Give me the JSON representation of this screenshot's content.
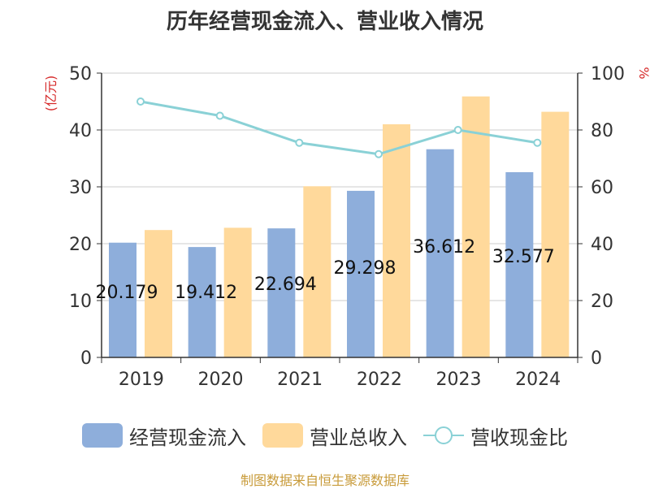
{
  "chart_data": {
    "type": "bar",
    "title": "历年经营现金流入、营业收入情况",
    "categories": [
      "2019",
      "2020",
      "2021",
      "2022",
      "2023",
      "2024"
    ],
    "series": [
      {
        "name": "经营现金流入",
        "type": "bar",
        "axis": "left",
        "color": "#8EAEDB",
        "values": [
          20.179,
          19.412,
          22.694,
          29.298,
          36.612,
          32.577
        ],
        "labels": [
          "20.179",
          "19.412",
          "22.694",
          "29.298",
          "36.612",
          "32.577"
        ]
      },
      {
        "name": "营业总收入",
        "type": "bar",
        "axis": "left",
        "color": "#FFD99B",
        "values": [
          22.4,
          22.8,
          30.1,
          41.0,
          45.9,
          43.2
        ]
      },
      {
        "name": "营收现金比",
        "type": "line",
        "axis": "right",
        "color": "#8AD1D6",
        "values": [
          90,
          85,
          75.5,
          71.5,
          80,
          75.5
        ]
      }
    ],
    "y_left": {
      "label": "(亿元)",
      "min": 0,
      "max": 50,
      "ticks": [
        "0",
        "10",
        "20",
        "30",
        "40",
        "50"
      ]
    },
    "y_right": {
      "label": "%",
      "min": 0,
      "max": 100,
      "ticks": [
        "0",
        "20",
        "40",
        "60",
        "80",
        "100"
      ]
    },
    "grid": true,
    "legend": "bottom-center"
  },
  "legend": {
    "items": [
      {
        "label": "经营现金流入",
        "color": "#8EAEDB"
      },
      {
        "label": "营业总收入",
        "color": "#FFD99B"
      },
      {
        "label": "营收现金比",
        "color": "#8AD1D6"
      }
    ]
  },
  "source": "制图数据来自恒生聚源数据库"
}
